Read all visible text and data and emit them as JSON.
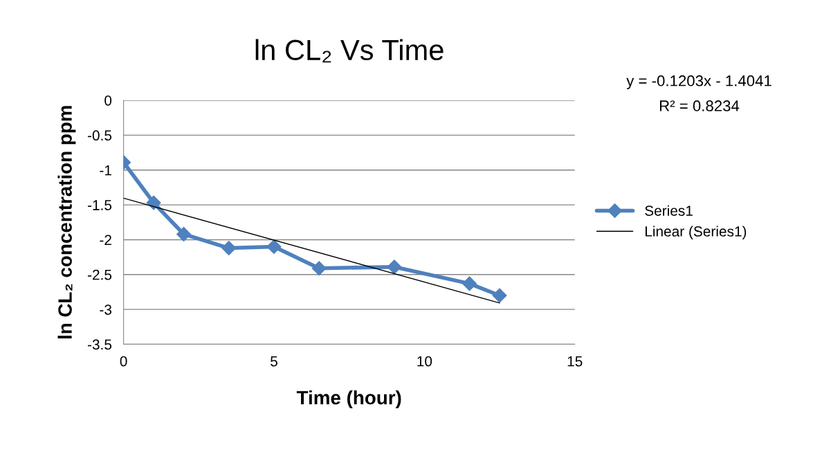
{
  "chart_data": {
    "type": "line",
    "title": "ln CL₂ Vs Time",
    "xlabel": "Time (hour)",
    "ylabel": "ln CL₂ concentration ppm",
    "series": [
      {
        "name": "Series1",
        "color": "#4f81bd",
        "x": [
          0,
          1,
          2,
          3.5,
          5,
          6.5,
          9,
          11.5,
          12.5
        ],
        "values": [
          -0.89,
          -1.47,
          -1.92,
          -2.12,
          -2.1,
          -2.41,
          -2.39,
          -2.63,
          -2.8
        ],
        "marker": "diamond"
      },
      {
        "name": "Linear (Series1)",
        "color": "#000000",
        "x": [
          0,
          12.5
        ],
        "values": [
          -1.4041,
          -2.9079
        ],
        "marker": "none"
      }
    ],
    "annotations": [
      "y = -0.1203x - 1.4041",
      "R² = 0.8234"
    ],
    "xlim": [
      0,
      15
    ],
    "xticks": [
      0,
      5,
      10,
      15
    ],
    "ylim": [
      -3.5,
      0
    ],
    "yticks": [
      0,
      -0.5,
      -1,
      -1.5,
      -2,
      -2.5,
      -3,
      -3.5
    ],
    "grid": "y",
    "legend": "right"
  }
}
